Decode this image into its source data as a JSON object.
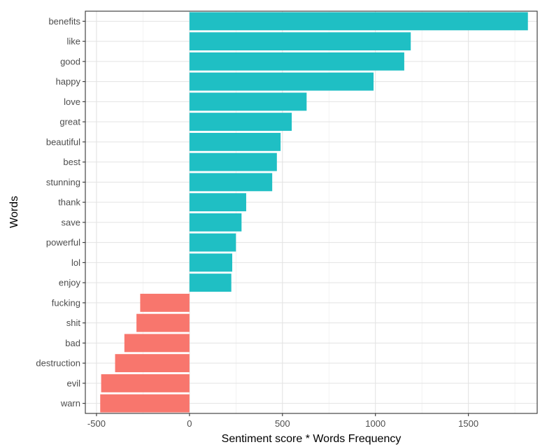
{
  "chart_data": {
    "type": "bar",
    "orientation": "horizontal",
    "xlabel": "Sentiment score * Words Frequency",
    "ylabel": "Words",
    "xlim": [
      -560,
      1870
    ],
    "x_ticks": [
      -500,
      0,
      500,
      1000,
      1500
    ],
    "categories": [
      "benefits",
      "like",
      "good",
      "happy",
      "love",
      "great",
      "beautiful",
      "best",
      "stunning",
      "thank",
      "save",
      "powerful",
      "lol",
      "enjoy",
      "fucking",
      "shit",
      "bad",
      "destruction",
      "evil",
      "warn"
    ],
    "values": [
      1820,
      1190,
      1155,
      990,
      630,
      550,
      490,
      470,
      445,
      305,
      280,
      250,
      230,
      225,
      -265,
      -285,
      -350,
      -400,
      -475,
      -480
    ],
    "colors": {
      "positive": "#1fbfc4",
      "negative": "#f8766d"
    },
    "grid": true,
    "legend": "none"
  }
}
